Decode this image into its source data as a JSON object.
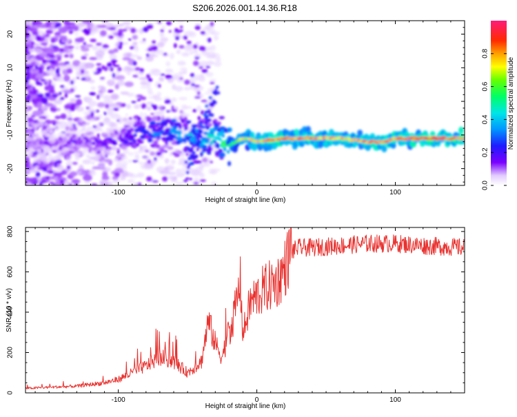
{
  "page": {
    "title": "S206.2026.001.14.36.R18"
  },
  "chart_data": [
    {
      "type": "heatmap",
      "xlabel": "Height of straight line (km)",
      "ylabel": "Frequency (Hz)",
      "xlim": [
        -167,
        150
      ],
      "ylim": [
        -25,
        24
      ],
      "xticks": [
        -100,
        0,
        100
      ],
      "yticks": [
        -20,
        -10,
        0,
        10,
        20
      ],
      "colorbar": {
        "label": "Normalized spectral amplitude",
        "range": [
          0.0,
          1.0
        ],
        "ticks": [
          0.0,
          0.2,
          0.4,
          0.6,
          0.8
        ],
        "tick_labels": [
          "0.0",
          "0.2",
          "0.4",
          "0.6",
          "0.8"
        ]
      },
      "ridge": {
        "description_points_x": [
          -167,
          -130,
          -100,
          -80,
          -60,
          -40,
          -30,
          -20,
          -10,
          0,
          20,
          60,
          80,
          90,
          100,
          120,
          150
        ],
        "frequency_hz": [
          -13,
          -12,
          -12,
          -9,
          -9,
          -12,
          -11,
          -13,
          -11,
          -12,
          -11,
          -11,
          -12,
          -12,
          -11,
          -11,
          -11
        ],
        "amplitude": [
          0.1,
          0.15,
          0.2,
          0.3,
          0.35,
          0.4,
          0.45,
          0.5,
          0.7,
          0.75,
          0.85,
          0.75,
          0.8,
          0.85,
          0.8,
          0.85,
          0.85
        ]
      }
    },
    {
      "type": "line",
      "xlabel": "Height of straight line (km)",
      "ylabel": "SNR (10 * v/v)",
      "xlim": [
        -167,
        150
      ],
      "ylim": [
        0,
        820
      ],
      "xticks": [
        -100,
        0,
        100
      ],
      "yticks": [
        0,
        200,
        400,
        600,
        800
      ],
      "series": [
        {
          "name": "SNR",
          "color": "#e8322f",
          "x": [
            -167,
            -150,
            -130,
            -110,
            -100,
            -90,
            -80,
            -70,
            -60,
            -50,
            -40,
            -35,
            -30,
            -25,
            -20,
            -15,
            -12,
            -10,
            -5,
            0,
            5,
            10,
            15,
            20,
            25,
            30,
            40,
            60,
            80,
            100,
            120,
            150
          ],
          "y": [
            20,
            25,
            30,
            45,
            60,
            90,
            120,
            160,
            140,
            90,
            140,
            320,
            220,
            160,
            280,
            420,
            540,
            280,
            430,
            470,
            500,
            520,
            540,
            600,
            700,
            720,
            720,
            730,
            740,
            740,
            730,
            720
          ]
        }
      ]
    }
  ]
}
